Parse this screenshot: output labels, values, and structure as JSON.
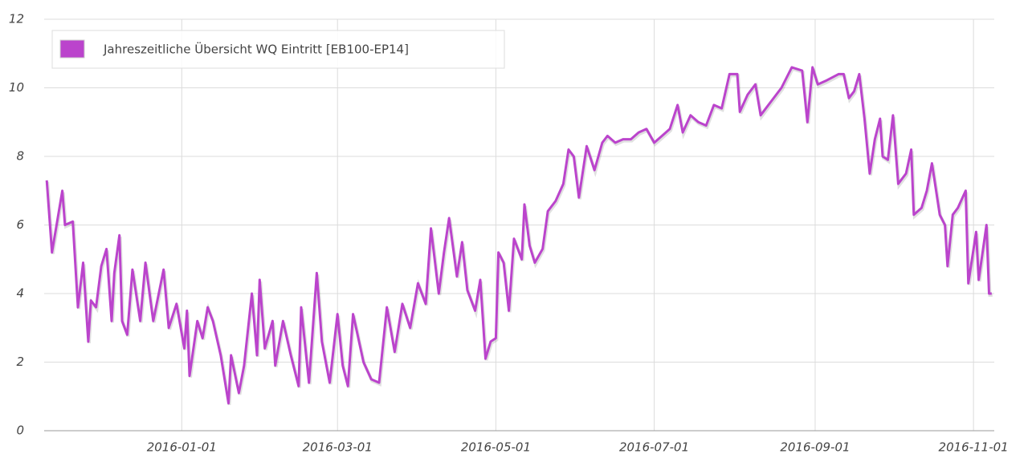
{
  "chart_data": {
    "type": "line",
    "x": [
      "2015-11-10",
      "2015-11-12",
      "2015-11-16",
      "2015-11-17",
      "2015-11-20",
      "2015-11-22",
      "2015-11-24",
      "2015-11-26",
      "2015-11-27",
      "2015-11-29",
      "2015-12-01",
      "2015-12-03",
      "2015-12-05",
      "2015-12-06",
      "2015-12-08",
      "2015-12-09",
      "2015-12-11",
      "2015-12-13",
      "2015-12-16",
      "2015-12-18",
      "2015-12-21",
      "2015-12-25",
      "2015-12-27",
      "2015-12-30",
      "2016-01-02",
      "2016-01-03",
      "2016-01-04",
      "2016-01-07",
      "2016-01-09",
      "2016-01-11",
      "2016-01-13",
      "2016-01-16",
      "2016-01-19",
      "2016-01-20",
      "2016-01-23",
      "2016-01-25",
      "2016-01-28",
      "2016-01-30",
      "2016-01-31",
      "2016-02-02",
      "2016-02-05",
      "2016-02-06",
      "2016-02-09",
      "2016-02-12",
      "2016-02-15",
      "2016-02-16",
      "2016-02-19",
      "2016-02-22",
      "2016-02-24",
      "2016-02-27",
      "2016-03-01",
      "2016-03-03",
      "2016-03-05",
      "2016-03-07",
      "2016-03-11",
      "2016-03-14",
      "2016-03-17",
      "2016-03-20",
      "2016-03-23",
      "2016-03-26",
      "2016-03-29",
      "2016-04-01",
      "2016-04-04",
      "2016-04-06",
      "2016-04-09",
      "2016-04-11",
      "2016-04-13",
      "2016-04-16",
      "2016-04-18",
      "2016-04-20",
      "2016-04-23",
      "2016-04-25",
      "2016-04-27",
      "2016-04-29",
      "2016-05-01",
      "2016-05-02",
      "2016-05-04",
      "2016-05-06",
      "2016-05-08",
      "2016-05-11",
      "2016-05-12",
      "2016-05-14",
      "2016-05-16",
      "2016-05-19",
      "2016-05-21",
      "2016-05-24",
      "2016-05-27",
      "2016-05-29",
      "2016-05-31",
      "2016-06-02",
      "2016-06-05",
      "2016-06-08",
      "2016-06-11",
      "2016-06-13",
      "2016-06-16",
      "2016-06-19",
      "2016-06-22",
      "2016-06-25",
      "2016-06-28",
      "2016-07-01",
      "2016-07-04",
      "2016-07-07",
      "2016-07-10",
      "2016-07-12",
      "2016-07-15",
      "2016-07-18",
      "2016-07-21",
      "2016-07-24",
      "2016-07-27",
      "2016-07-30",
      "2016-08-02",
      "2016-08-03",
      "2016-08-06",
      "2016-08-09",
      "2016-08-11",
      "2016-08-15",
      "2016-08-19",
      "2016-08-23",
      "2016-08-27",
      "2016-08-29",
      "2016-08-31",
      "2016-09-02",
      "2016-09-05",
      "2016-09-10",
      "2016-09-12",
      "2016-09-14",
      "2016-09-16",
      "2016-09-18",
      "2016-09-20",
      "2016-09-22",
      "2016-09-24",
      "2016-09-26",
      "2016-09-27",
      "2016-09-29",
      "2016-10-01",
      "2016-10-03",
      "2016-10-06",
      "2016-10-08",
      "2016-10-09",
      "2016-10-12",
      "2016-10-14",
      "2016-10-16",
      "2016-10-19",
      "2016-10-21",
      "2016-10-22",
      "2016-10-24",
      "2016-10-26",
      "2016-10-29",
      "2016-10-30",
      "2016-11-02",
      "2016-11-03",
      "2016-11-06",
      "2016-11-07",
      "2016-11-08"
    ],
    "series": [
      {
        "name": "Jahreszeitliche Übersicht WQ Eintritt [EB100-EP14]",
        "color": "#bb44cc",
        "values": [
          7.3,
          5.2,
          7.0,
          6.0,
          6.1,
          3.6,
          4.9,
          2.6,
          3.8,
          3.6,
          4.8,
          5.3,
          3.2,
          4.6,
          5.7,
          3.2,
          2.8,
          4.7,
          3.2,
          4.9,
          3.2,
          4.7,
          3.0,
          3.7,
          2.4,
          3.5,
          1.6,
          3.2,
          2.7,
          3.6,
          3.2,
          2.2,
          0.8,
          2.2,
          1.1,
          1.9,
          4.0,
          2.2,
          4.4,
          2.4,
          3.2,
          1.9,
          3.2,
          2.2,
          1.3,
          3.6,
          1.4,
          4.6,
          2.6,
          1.4,
          3.4,
          1.9,
          1.3,
          3.4,
          2.0,
          1.5,
          1.4,
          3.6,
          2.3,
          3.7,
          3.0,
          4.3,
          3.7,
          5.9,
          4.0,
          5.2,
          6.2,
          4.5,
          5.5,
          4.1,
          3.5,
          4.4,
          2.1,
          2.6,
          2.7,
          5.2,
          4.9,
          3.5,
          5.6,
          5.0,
          6.6,
          5.4,
          4.9,
          5.3,
          6.4,
          6.7,
          7.2,
          8.2,
          8.0,
          6.8,
          8.3,
          7.6,
          8.4,
          8.6,
          8.4,
          8.5,
          8.5,
          8.7,
          8.8,
          8.4,
          8.6,
          8.8,
          9.5,
          8.7,
          9.2,
          9.0,
          8.9,
          9.5,
          9.4,
          10.4,
          10.4,
          9.3,
          9.8,
          10.1,
          9.2,
          9.6,
          10.0,
          10.6,
          10.5,
          9.0,
          10.6,
          10.1,
          10.2,
          10.4,
          10.4,
          9.7,
          9.9,
          10.4,
          9.1,
          7.5,
          8.5,
          9.1,
          8.0,
          7.9,
          9.2,
          7.2,
          7.5,
          8.2,
          6.3,
          6.5,
          7.0,
          7.8,
          6.3,
          6.0,
          4.8,
          6.3,
          6.5,
          7.0,
          4.3,
          5.8,
          4.4,
          6.0,
          4.0,
          4.0
        ]
      }
    ],
    "xlim": [
      "2015-11-09",
      "2016-11-09"
    ],
    "xticks": [
      "2016-01-01",
      "2016-03-01",
      "2016-05-01",
      "2016-07-01",
      "2016-09-01",
      "2016-11-01"
    ],
    "ylim": [
      0,
      12
    ],
    "yticks": [
      0,
      2,
      4,
      6,
      8,
      10,
      12
    ],
    "grid": true,
    "legend": "top-left"
  }
}
